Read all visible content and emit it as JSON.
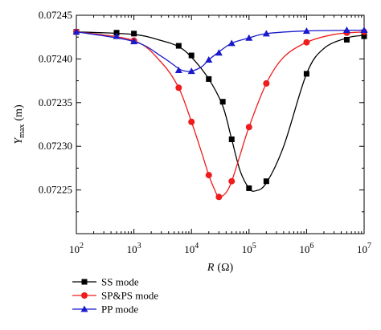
{
  "chart_data": {
    "type": "line",
    "x_scale": "log",
    "xlim": [
      100,
      10000000
    ],
    "ylim": [
      0.0722,
      0.07245
    ],
    "x_ticks": [
      {
        "base": "10",
        "exp": "2"
      },
      {
        "base": "10",
        "exp": "3"
      },
      {
        "base": "10",
        "exp": "4"
      },
      {
        "base": "10",
        "exp": "5"
      },
      {
        "base": "10",
        "exp": "6"
      },
      {
        "base": "10",
        "exp": "7"
      }
    ],
    "y_ticks": [
      "0.07225",
      "0.07230",
      "0.07235",
      "0.07240",
      "0.07245"
    ],
    "y_tick_values": [
      0.07225,
      0.0723,
      0.07235,
      0.0724,
      0.07245
    ],
    "xlabel": {
      "main": "R",
      "unit": "(Ω)"
    },
    "ylabel": {
      "main": "Y",
      "sub": "max",
      "unit": "(m)"
    },
    "grid": false,
    "legend_position": "bottom-left-below-plot",
    "series": [
      {
        "name": "SS mode",
        "color": "#000000",
        "marker": "square",
        "points": [
          [
            100,
            0.072431
          ],
          [
            500,
            0.07243
          ],
          [
            1000,
            0.072429
          ],
          [
            6000,
            0.072415
          ],
          [
            10000,
            0.072404
          ],
          [
            20000,
            0.072377
          ],
          [
            35000,
            0.072351
          ],
          [
            50000,
            0.072308
          ],
          [
            100000,
            0.072252
          ],
          [
            200000,
            0.07226
          ],
          [
            1000000,
            0.072383
          ],
          [
            5000000,
            0.072422
          ],
          [
            10000000,
            0.072426
          ]
        ],
        "curve": [
          [
            100,
            0.072431
          ],
          [
            1000,
            0.072428
          ],
          [
            3000,
            0.072421
          ],
          [
            6000,
            0.072414
          ],
          [
            10000,
            0.072402
          ],
          [
            20000,
            0.072377
          ],
          [
            35000,
            0.072346
          ],
          [
            50000,
            0.072308
          ],
          [
            70000,
            0.072272
          ],
          [
            100000,
            0.072252
          ],
          [
            130000,
            0.072249
          ],
          [
            200000,
            0.072258
          ],
          [
            400000,
            0.0723
          ],
          [
            1000000,
            0.072383
          ],
          [
            2000000,
            0.072412
          ],
          [
            5000000,
            0.072424
          ],
          [
            10000000,
            0.072427
          ]
        ]
      },
      {
        "name": "SP&PS mode",
        "color": "#ee1c1c",
        "marker": "circle",
        "points": [
          [
            100,
            0.072431
          ],
          [
            1000,
            0.072421
          ],
          [
            6000,
            0.072367
          ],
          [
            10000,
            0.072328
          ],
          [
            20000,
            0.072267
          ],
          [
            30000,
            0.072242
          ],
          [
            50000,
            0.07226
          ],
          [
            100000,
            0.072322
          ],
          [
            200000,
            0.072372
          ],
          [
            1000000,
            0.072419
          ],
          [
            5000000,
            0.07243
          ],
          [
            10000000,
            0.072431
          ]
        ],
        "curve": [
          [
            100,
            0.072431
          ],
          [
            1000,
            0.072421
          ],
          [
            3000,
            0.072396
          ],
          [
            6000,
            0.072367
          ],
          [
            10000,
            0.072328
          ],
          [
            15000,
            0.072293
          ],
          [
            20000,
            0.072267
          ],
          [
            25000,
            0.072251
          ],
          [
            30000,
            0.072242
          ],
          [
            40000,
            0.072247
          ],
          [
            50000,
            0.07226
          ],
          [
            70000,
            0.07229
          ],
          [
            100000,
            0.072322
          ],
          [
            200000,
            0.072372
          ],
          [
            400000,
            0.072402
          ],
          [
            1000000,
            0.072419
          ],
          [
            3000000,
            0.072428
          ],
          [
            10000000,
            0.072431
          ]
        ]
      },
      {
        "name": "PP mode",
        "color": "#1a1acc",
        "marker": "triangle",
        "points": [
          [
            100,
            0.072431
          ],
          [
            500,
            0.072426
          ],
          [
            1000,
            0.07242
          ],
          [
            6000,
            0.072387
          ],
          [
            10000,
            0.072386
          ],
          [
            20000,
            0.072399
          ],
          [
            30000,
            0.072407
          ],
          [
            50000,
            0.072418
          ],
          [
            100000,
            0.072424
          ],
          [
            200000,
            0.072429
          ],
          [
            1000000,
            0.072432
          ],
          [
            5000000,
            0.072433
          ],
          [
            10000000,
            0.072433
          ]
        ],
        "curve": [
          [
            100,
            0.072431
          ],
          [
            1000,
            0.07242
          ],
          [
            3000,
            0.072403
          ],
          [
            6000,
            0.072389
          ],
          [
            8000,
            0.072386
          ],
          [
            10000,
            0.072386
          ],
          [
            15000,
            0.072391
          ],
          [
            20000,
            0.072399
          ],
          [
            30000,
            0.072408
          ],
          [
            50000,
            0.072418
          ],
          [
            100000,
            0.072424
          ],
          [
            200000,
            0.072429
          ],
          [
            1000000,
            0.072432
          ],
          [
            10000000,
            0.072433
          ]
        ]
      }
    ]
  }
}
